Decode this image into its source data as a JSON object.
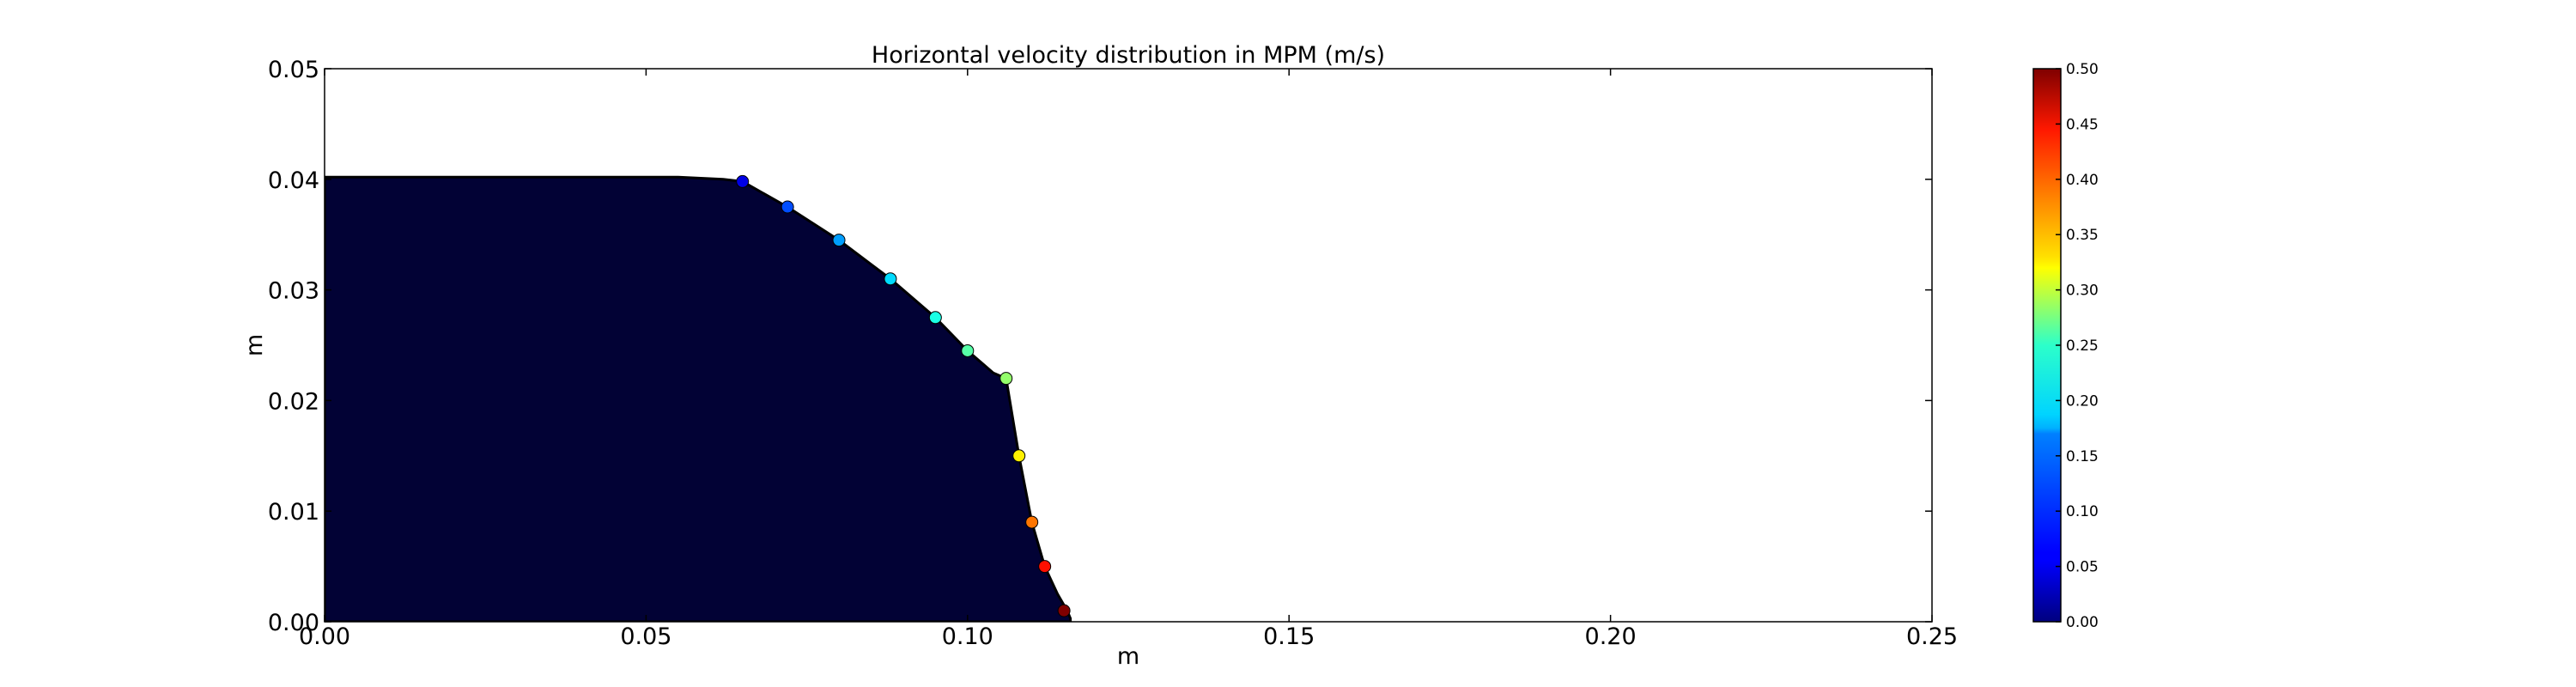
{
  "chart_data": {
    "type": "heatmap",
    "title": "Horizontal velocity distribution in MPM (m/s)",
    "xlabel": "m",
    "ylabel": "m",
    "xlim": [
      0.0,
      0.25
    ],
    "ylim": [
      0.0,
      0.05
    ],
    "x_ticks": [
      "0.00",
      "0.05",
      "0.10",
      "0.15",
      "0.20",
      "0.25"
    ],
    "y_ticks": [
      "0.00",
      "0.01",
      "0.02",
      "0.03",
      "0.04",
      "0.05"
    ],
    "x_tick_values": [
      0.0,
      0.05,
      0.1,
      0.15,
      0.2,
      0.25
    ],
    "y_tick_values": [
      0.0,
      0.01,
      0.02,
      0.03,
      0.04,
      0.05
    ],
    "grid": false,
    "colormap": "jet",
    "colorbar": {
      "range": [
        0.0,
        0.5
      ],
      "tick_values": [
        0.0,
        0.05,
        0.1,
        0.15,
        0.2,
        0.25,
        0.3,
        0.35,
        0.4,
        0.45,
        0.5
      ],
      "ticks": [
        "0.00",
        "0.05",
        "0.10",
        "0.15",
        "0.20",
        "0.25",
        "0.30",
        "0.35",
        "0.40",
        "0.45",
        "0.50"
      ]
    },
    "surface_profile": {
      "x": [
        0.0,
        0.055,
        0.062,
        0.065,
        0.072,
        0.08,
        0.088,
        0.095,
        0.1,
        0.104,
        0.106,
        0.108,
        0.11,
        0.112,
        0.114,
        0.1155,
        0.116,
        0.116
      ],
      "y": [
        0.0402,
        0.0402,
        0.04,
        0.0398,
        0.0375,
        0.0345,
        0.031,
        0.0275,
        0.0245,
        0.0225,
        0.022,
        0.015,
        0.009,
        0.005,
        0.0025,
        0.001,
        0.0003,
        0.0
      ]
    },
    "velocity_samples": [
      {
        "x": 0.065,
        "y": 0.0398,
        "u": 0.05
      },
      {
        "x": 0.072,
        "y": 0.0375,
        "u": 0.1
      },
      {
        "x": 0.08,
        "y": 0.0345,
        "u": 0.14
      },
      {
        "x": 0.088,
        "y": 0.031,
        "u": 0.17
      },
      {
        "x": 0.095,
        "y": 0.0275,
        "u": 0.2
      },
      {
        "x": 0.1,
        "y": 0.0245,
        "u": 0.23
      },
      {
        "x": 0.106,
        "y": 0.022,
        "u": 0.26
      },
      {
        "x": 0.108,
        "y": 0.015,
        "u": 0.32
      },
      {
        "x": 0.11,
        "y": 0.009,
        "u": 0.38
      },
      {
        "x": 0.112,
        "y": 0.005,
        "u": 0.43
      },
      {
        "x": 0.115,
        "y": 0.001,
        "u": 0.5
      }
    ]
  }
}
